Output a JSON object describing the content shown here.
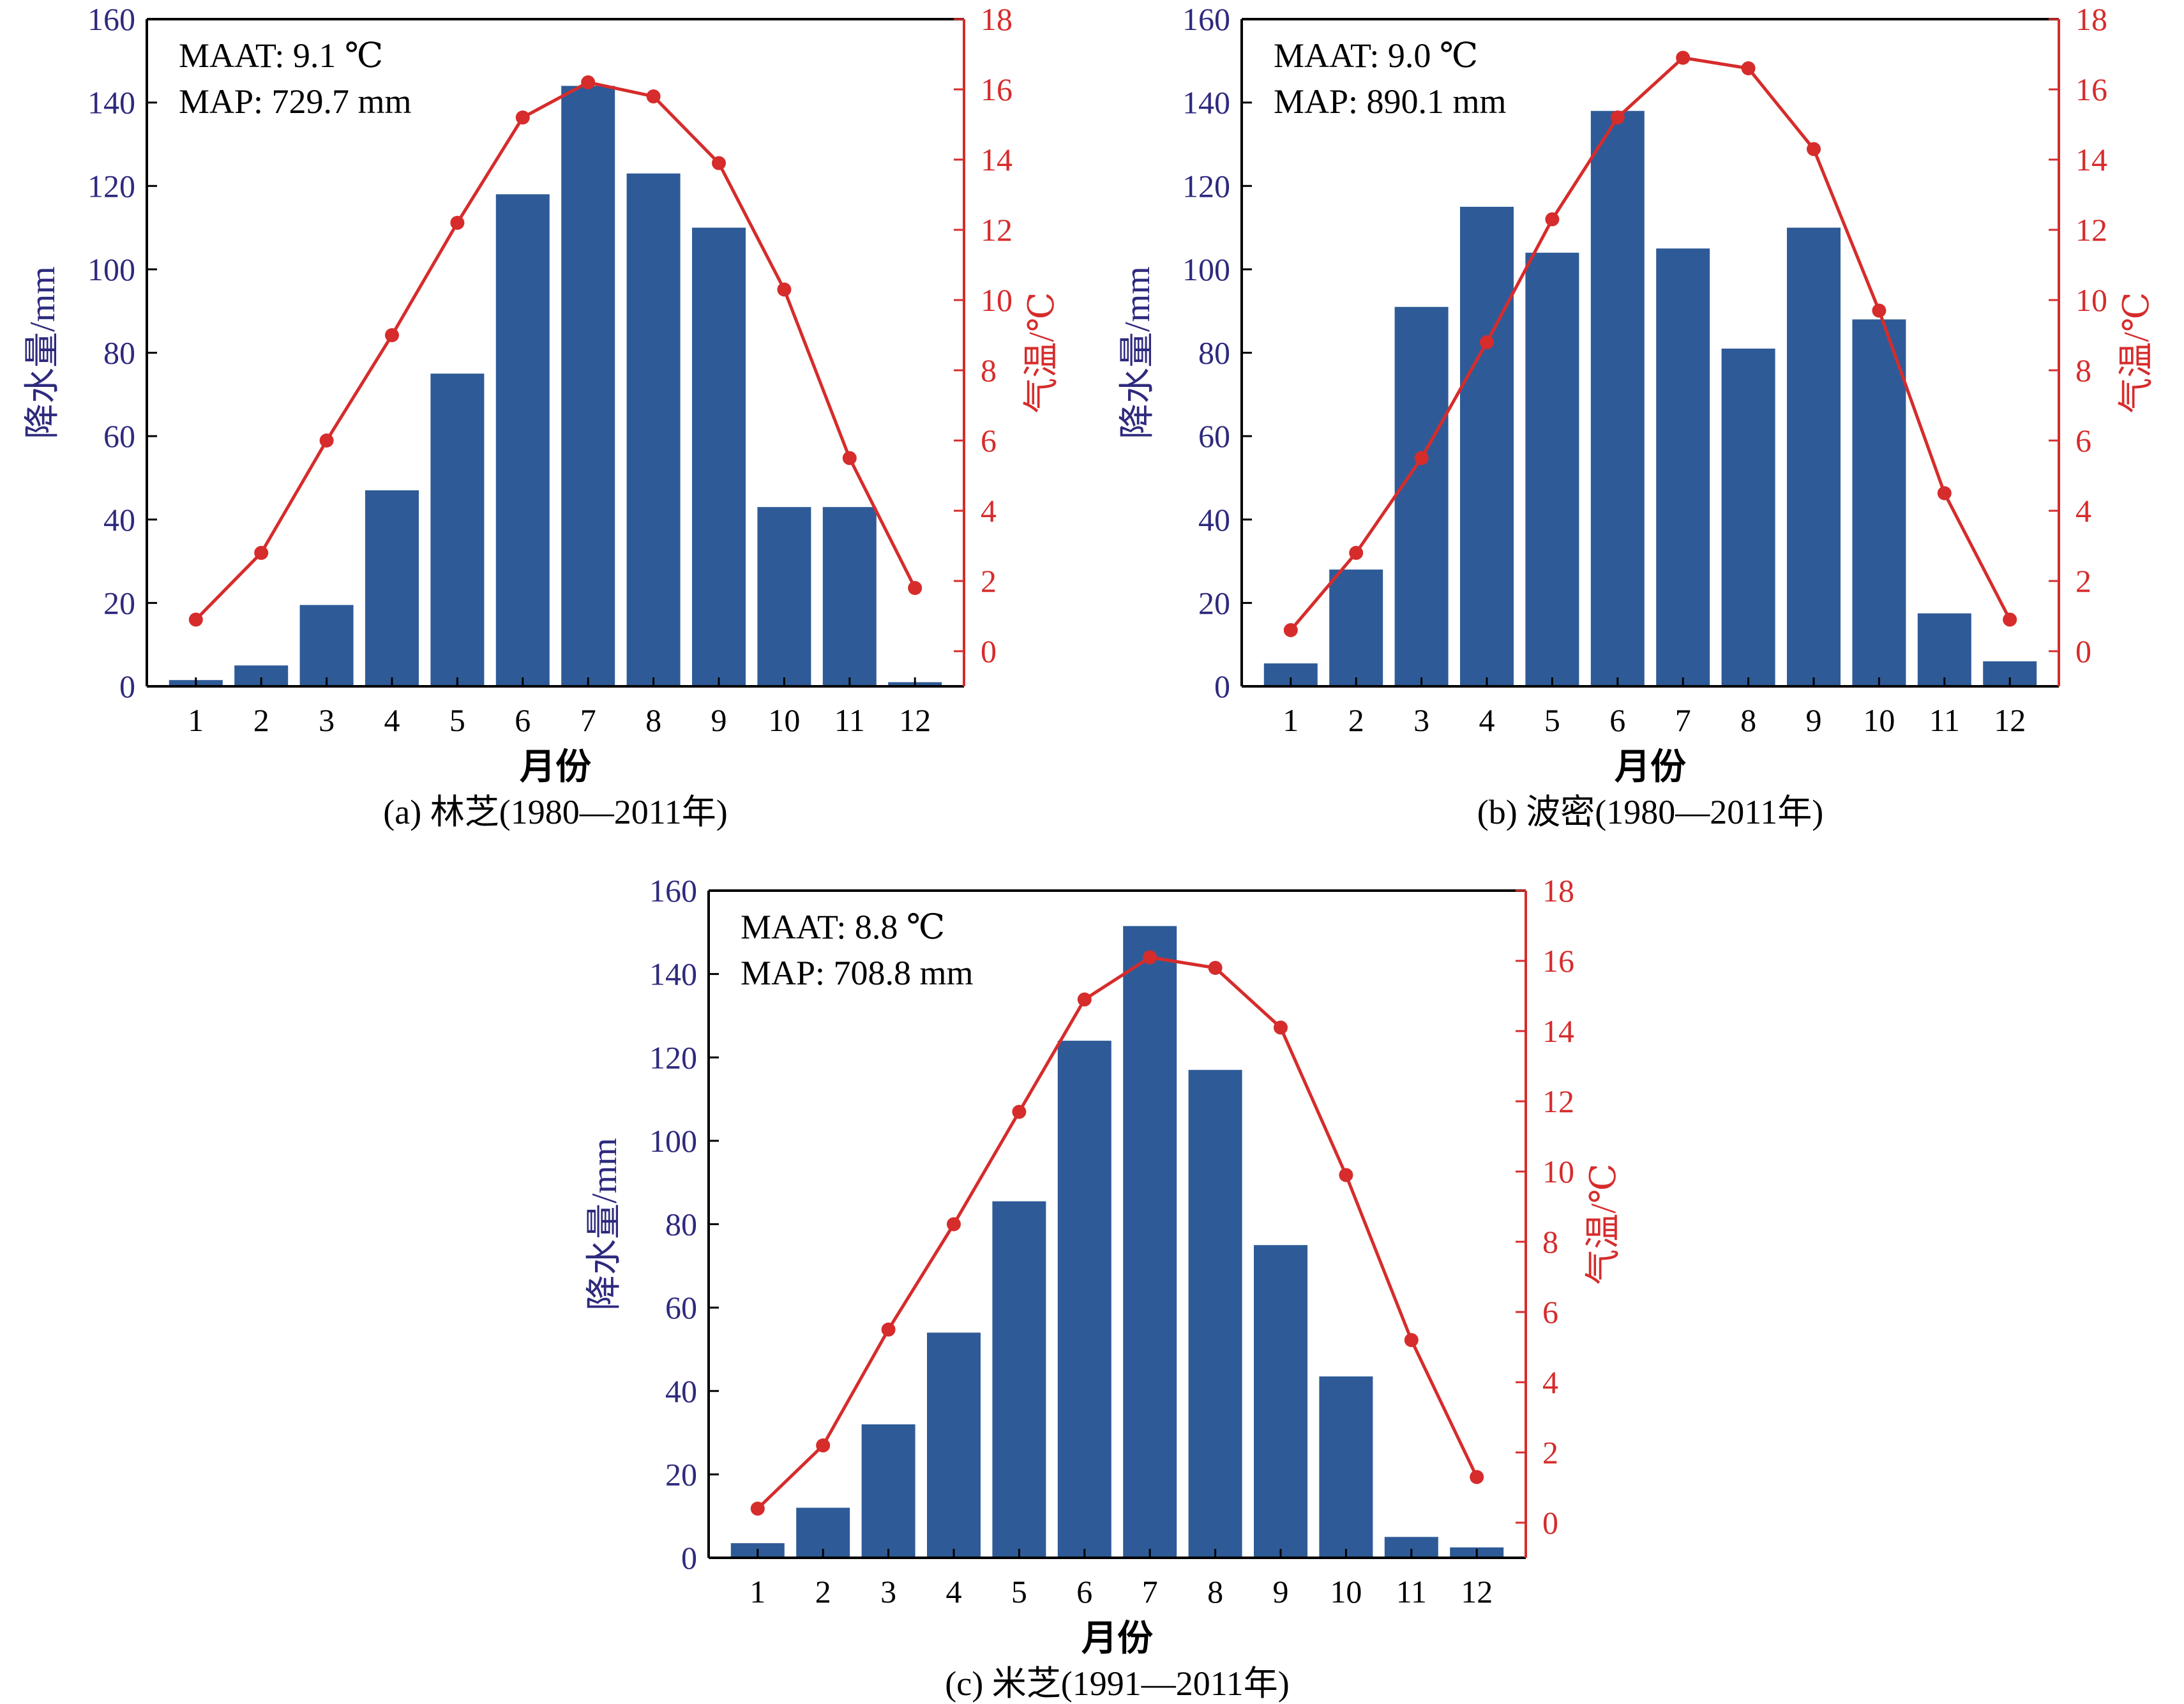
{
  "colors": {
    "bar": "#2E5B97",
    "temp": "#D62C2C",
    "left_axis_text": "#2E2A7D",
    "axis": "#000000"
  },
  "chart_data": [
    {
      "type": "bar",
      "caption": "(a) 林芝(1980—2011年)",
      "annotation": [
        "MAAT: 9.1 ℃",
        "MAP: 729.7 mm"
      ],
      "xlabel": "月份",
      "ylabel": "降水量/mm",
      "y2label": "气温/℃",
      "categories": [
        "1",
        "2",
        "3",
        "4",
        "5",
        "6",
        "7",
        "8",
        "9",
        "10",
        "11",
        "12"
      ],
      "ylim": [
        0,
        160
      ],
      "yticks": [
        0,
        20,
        40,
        60,
        80,
        100,
        120,
        140,
        160
      ],
      "y2lim": [
        -1,
        18
      ],
      "y2ticks": [
        0,
        2,
        4,
        6,
        8,
        10,
        12,
        14,
        16,
        18
      ],
      "series": [
        {
          "name": "降水量",
          "axis": "left",
          "kind": "bar",
          "values": [
            1.5,
            5,
            19.5,
            47,
            75,
            118,
            144,
            123,
            110,
            43,
            43,
            1
          ]
        },
        {
          "name": "气温",
          "axis": "right",
          "kind": "line",
          "values": [
            0.9,
            2.8,
            6.0,
            9.0,
            12.2,
            15.2,
            16.2,
            15.8,
            13.9,
            10.3,
            5.5,
            1.8
          ]
        }
      ]
    },
    {
      "type": "bar",
      "caption": "(b) 波密(1980—2011年)",
      "annotation": [
        "MAAT: 9.0 ℃",
        "MAP: 890.1 mm"
      ],
      "xlabel": "月份",
      "ylabel": "降水量/mm",
      "y2label": "气温/℃",
      "categories": [
        "1",
        "2",
        "3",
        "4",
        "5",
        "6",
        "7",
        "8",
        "9",
        "10",
        "11",
        "12"
      ],
      "ylim": [
        0,
        160
      ],
      "yticks": [
        0,
        20,
        40,
        60,
        80,
        100,
        120,
        140,
        160
      ],
      "y2lim": [
        -1,
        18
      ],
      "y2ticks": [
        0,
        2,
        4,
        6,
        8,
        10,
        12,
        14,
        16,
        18
      ],
      "series": [
        {
          "name": "降水量",
          "axis": "left",
          "kind": "bar",
          "values": [
            5.5,
            28,
            91,
            115,
            104,
            138,
            105,
            81,
            110,
            88,
            17.5,
            6
          ]
        },
        {
          "name": "气温",
          "axis": "right",
          "kind": "line",
          "values": [
            0.6,
            2.8,
            5.5,
            8.8,
            12.3,
            15.2,
            16.9,
            16.6,
            14.3,
            9.7,
            4.5,
            0.9
          ]
        }
      ]
    },
    {
      "type": "bar",
      "caption": "(c) 米芝(1991—2011年)",
      "annotation": [
        "MAAT: 8.8 ℃",
        "MAP: 708.8 mm"
      ],
      "xlabel": "月份",
      "ylabel": "降水量/mm",
      "y2label": "气温/℃",
      "categories": [
        "1",
        "2",
        "3",
        "4",
        "5",
        "6",
        "7",
        "8",
        "9",
        "10",
        "11",
        "12"
      ],
      "ylim": [
        0,
        160
      ],
      "yticks": [
        0,
        20,
        40,
        60,
        80,
        100,
        120,
        140,
        160
      ],
      "y2lim": [
        -1,
        18
      ],
      "y2ticks": [
        0,
        2,
        4,
        6,
        8,
        10,
        12,
        14,
        16,
        18
      ],
      "series": [
        {
          "name": "降水量",
          "axis": "left",
          "kind": "bar",
          "values": [
            3.5,
            12,
            32,
            54,
            85.5,
            124,
            151.5,
            117,
            75,
            43.5,
            5,
            2.5
          ]
        },
        {
          "name": "气温",
          "axis": "right",
          "kind": "line",
          "values": [
            0.4,
            2.2,
            5.5,
            8.5,
            11.7,
            14.9,
            16.1,
            15.8,
            14.1,
            9.9,
            5.2,
            1.3
          ]
        }
      ]
    }
  ]
}
